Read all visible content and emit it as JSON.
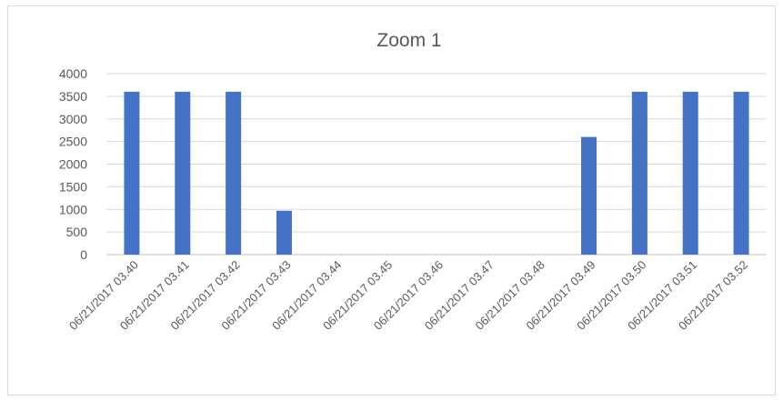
{
  "chart_data": {
    "type": "bar",
    "title": "Zoom 1",
    "xlabel": "",
    "ylabel": "",
    "ylim": [
      0,
      4000
    ],
    "yticks": [
      0,
      500,
      1000,
      1500,
      2000,
      2500,
      3000,
      3500,
      4000
    ],
    "grid": true,
    "legend": "none",
    "bar_color": "#4472c4",
    "categories": [
      "06/21/2017 03.40",
      "06/21/2017 03.41",
      "06/21/2017 03.42",
      "06/21/2017 03.43",
      "06/21/2017 03.44",
      "06/21/2017 03.45",
      "06/21/2017 03.46",
      "06/21/2017 03.47",
      "06/21/2017 03.48",
      "06/21/2017 03.49",
      "06/21/2017 03.50",
      "06/21/2017 03.51",
      "06/21/2017 03.52"
    ],
    "values": [
      3600,
      3600,
      3600,
      970,
      0,
      0,
      0,
      0,
      0,
      2600,
      3600,
      3600,
      3600
    ]
  }
}
